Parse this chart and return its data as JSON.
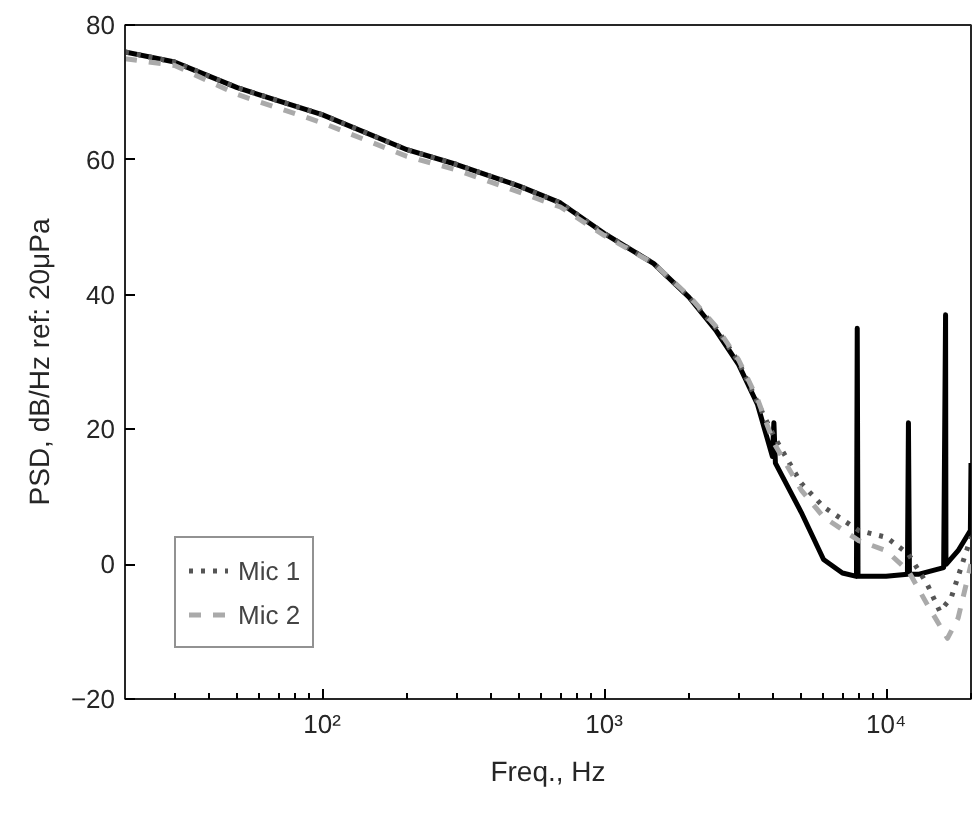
{
  "chart_data": {
    "type": "line",
    "xlabel": "Freq., Hz",
    "ylabel": "PSD, dB/Hz ref: 20μPa",
    "log": "x",
    "xlim": [
      20,
      20000
    ],
    "ylim": [
      -20,
      80
    ],
    "xticks": [
      {
        "value": 100,
        "label": "10²"
      },
      {
        "value": 1000,
        "label": "10³"
      },
      {
        "value": 10000,
        "label": "10⁴"
      }
    ],
    "yticks": [
      -20,
      0,
      20,
      40,
      60,
      80
    ],
    "grid": false,
    "legend": "bottom left",
    "marker": "none",
    "series": [
      {
        "color": "#000000",
        "line_style": "solid",
        "x": [
          20,
          30,
          50,
          100,
          200,
          300,
          500,
          700,
          1000,
          1500,
          2000,
          2500,
          3000,
          3500,
          3950,
          4000,
          4050,
          5000,
          6000,
          7000,
          7850,
          7900,
          7950,
          10000,
          11900,
          12000,
          12100,
          13000,
          16000,
          16250,
          16300,
          16350,
          18000,
          19900,
          20000
        ],
        "values": [
          76,
          74.5,
          70.7,
          66.7,
          61.5,
          59.3,
          56.1,
          53.6,
          49.1,
          44.6,
          39.6,
          34.6,
          29.6,
          23.7,
          16,
          21,
          15,
          7.7,
          0.7,
          -1.3,
          -1.8,
          35,
          -1.8,
          -1.8,
          -1.5,
          21,
          -1.5,
          -1.5,
          -0.5,
          37,
          0,
          0,
          2,
          5,
          15
        ]
      },
      {
        "name": "Mic 1",
        "color": "#555555",
        "line_style": "dotted",
        "x": [
          20,
          30,
          50,
          100,
          200,
          300,
          500,
          700,
          1000,
          1500,
          2000,
          2500,
          3000,
          3500,
          4000,
          5000,
          6000,
          8000,
          10000,
          12000,
          14000,
          15500,
          17000,
          20000
        ],
        "values": [
          76,
          74.5,
          70.7,
          66.7,
          61.5,
          59.3,
          56.1,
          53.6,
          49.1,
          44.6,
          39.6,
          35,
          30,
          24,
          19,
          12,
          8.5,
          5,
          4,
          1.5,
          -3,
          -7,
          -5,
          4
        ]
      },
      {
        "name": "Mic 2",
        "color": "#aaaaaa",
        "line_style": "dashed",
        "x": [
          20,
          30,
          50,
          100,
          200,
          300,
          500,
          700,
          1000,
          1500,
          2000,
          2500,
          3000,
          3500,
          4000,
          5000,
          6000,
          8000,
          10000,
          12000,
          14000,
          16500,
          18000,
          20000
        ],
        "values": [
          75,
          74,
          69.7,
          65.5,
          60.5,
          58.5,
          55.2,
          53,
          48.8,
          44.6,
          39.8,
          35.2,
          30.3,
          24.5,
          18,
          11,
          7,
          3.5,
          2,
          -1,
          -6,
          -11,
          -8,
          0
        ]
      }
    ]
  }
}
